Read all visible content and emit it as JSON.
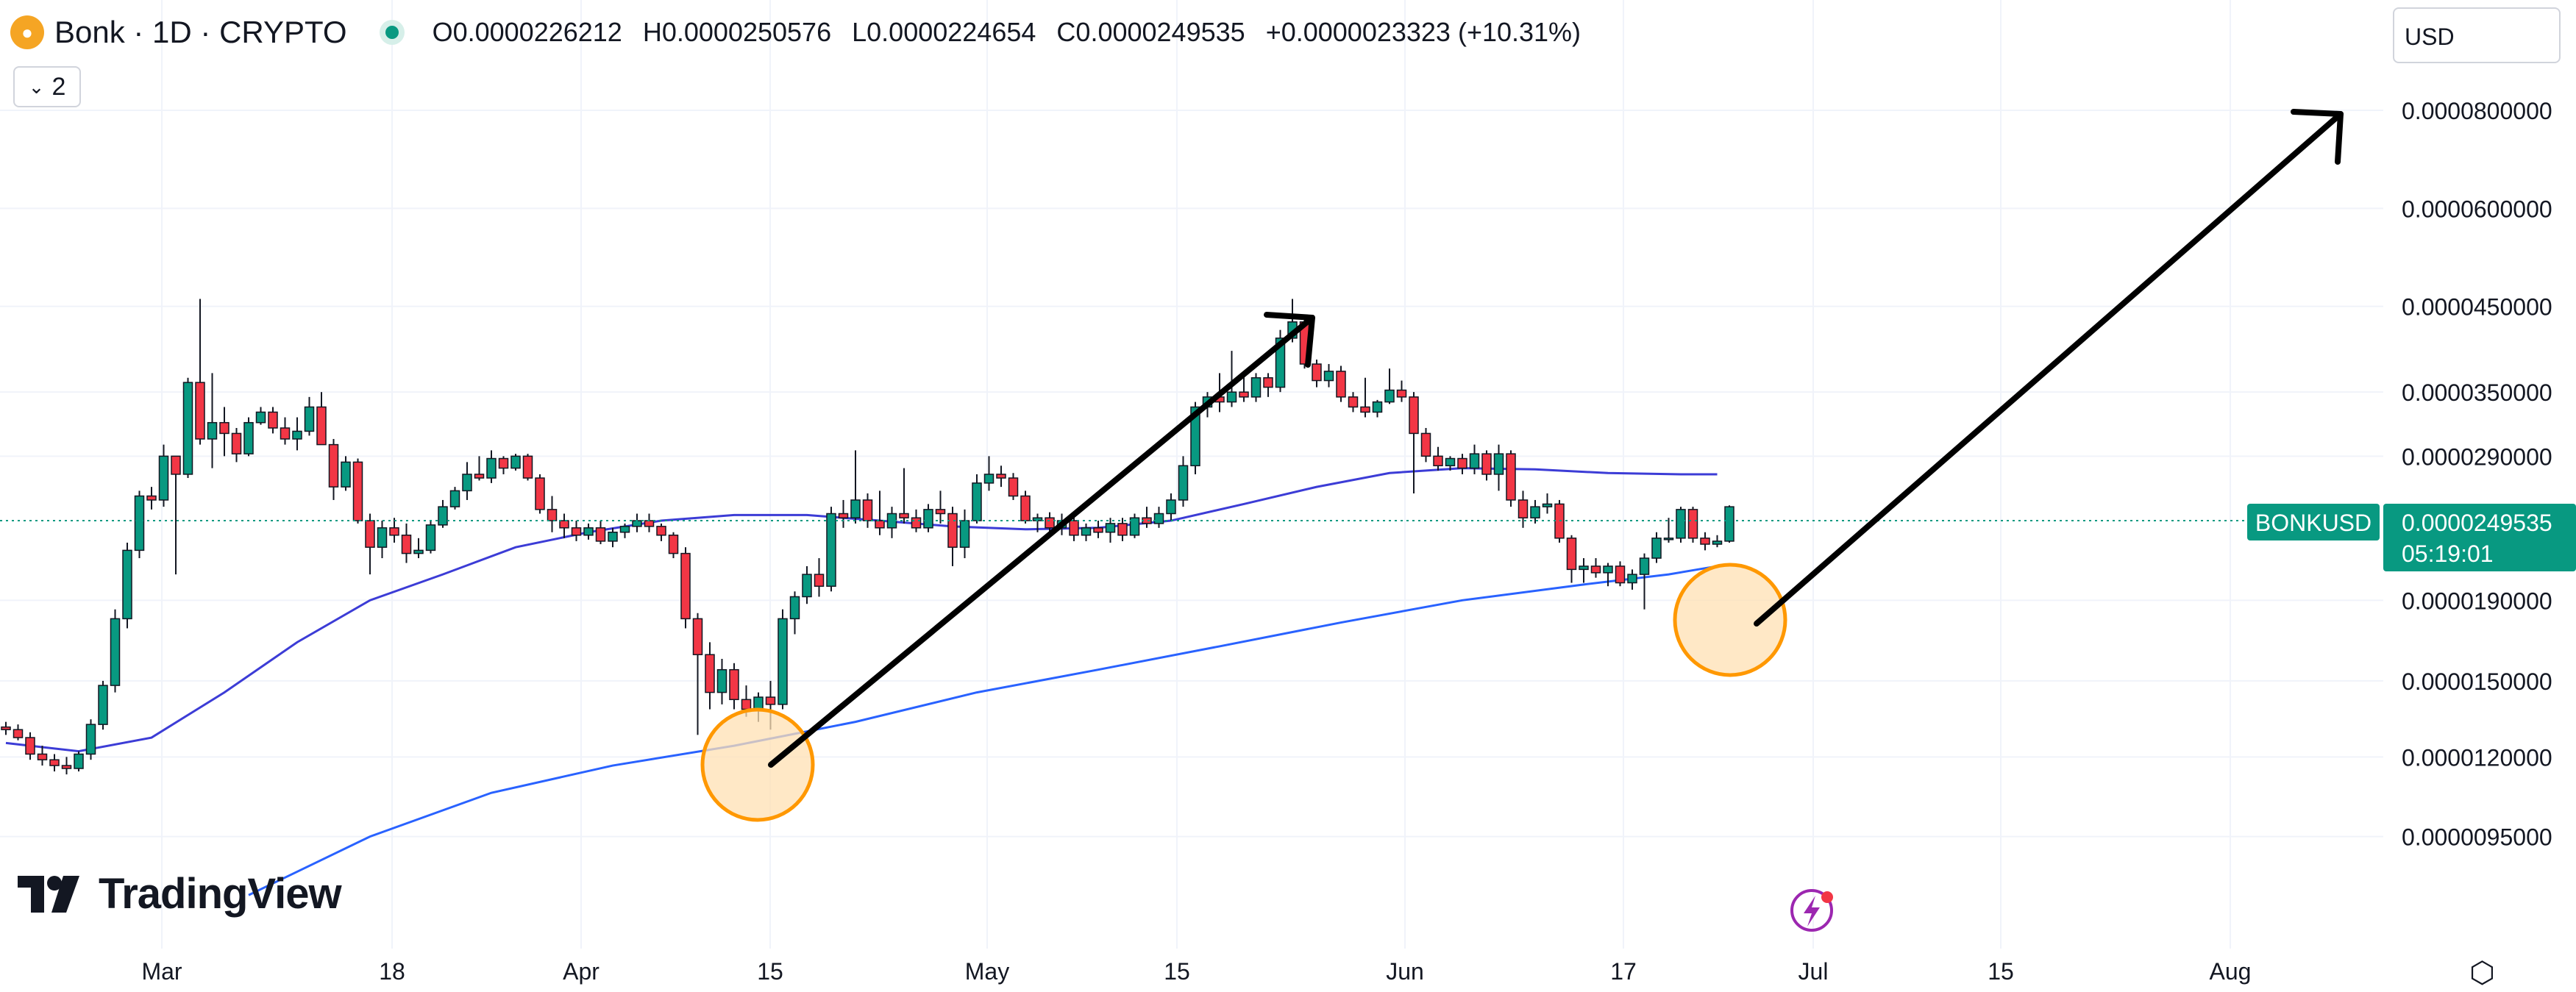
{
  "header": {
    "symbol": "Bonk · 1D · CRYPTO",
    "o_label": "O",
    "o_value": "0.0000226212",
    "h_label": "H",
    "h_value": "0.0000250576",
    "l_label": "L",
    "l_value": "0.0000224654",
    "c_label": "C",
    "c_value": "0.0000249535",
    "change": "+0.0000023323 (+10.31%)",
    "indicator_count": "2"
  },
  "currency": "USD",
  "brand": "TradingView",
  "colors": {
    "up": "#089981",
    "down": "#f23645",
    "ma_short": "#3c3cd6",
    "ma_long": "#2962ff",
    "annotation": "#ff9800"
  },
  "chart_data": {
    "type": "candlestick",
    "scale": "log",
    "y_ticks": [
      "0.0000800000",
      "0.0000600000",
      "0.0000450000",
      "0.0000350000",
      "0.0000290000",
      "0.0000190000",
      "0.0000150000",
      "0.0000120000",
      "0.0000095000"
    ],
    "x_ticks": [
      "Mar",
      "18",
      "Apr",
      "15",
      "May",
      "15",
      "Jun",
      "17",
      "Jul",
      "15",
      "Aug"
    ],
    "last_price": {
      "symbol": "BONKUSD",
      "value": "0.0000249535",
      "countdown": "05:19:01"
    },
    "series": [
      {
        "name": "candles",
        "ohlc": [
          [
            1.31e-05,
            1.33e-05,
            1.28e-05,
            1.3e-05
          ],
          [
            1.3e-05,
            1.32e-05,
            1.26e-05,
            1.27e-05
          ],
          [
            1.27e-05,
            1.29e-05,
            1.19e-05,
            1.21e-05
          ],
          [
            1.21e-05,
            1.24e-05,
            1.17e-05,
            1.19e-05
          ],
          [
            1.19e-05,
            1.21e-05,
            1.15e-05,
            1.17e-05
          ],
          [
            1.17e-05,
            1.2e-05,
            1.14e-05,
            1.16e-05
          ],
          [
            1.16e-05,
            1.22e-05,
            1.15e-05,
            1.21e-05
          ],
          [
            1.21e-05,
            1.34e-05,
            1.19e-05,
            1.32e-05
          ],
          [
            1.32e-05,
            1.5e-05,
            1.3e-05,
            1.48e-05
          ],
          [
            1.48e-05,
            1.85e-05,
            1.45e-05,
            1.8e-05
          ],
          [
            1.8e-05,
            2.25e-05,
            1.75e-05,
            2.2e-05
          ],
          [
            2.2e-05,
            2.62e-05,
            2.15e-05,
            2.58e-05
          ],
          [
            2.58e-05,
            2.65e-05,
            2.48e-05,
            2.55e-05
          ],
          [
            2.55e-05,
            3e-05,
            2.5e-05,
            2.9e-05
          ],
          [
            2.9e-05,
            2.9e-05,
            2.05e-05,
            2.75e-05
          ],
          [
            2.75e-05,
            3.65e-05,
            2.72e-05,
            3.6e-05
          ],
          [
            3.6e-05,
            4.6e-05,
            3e-05,
            3.05e-05
          ],
          [
            3.05e-05,
            3.7e-05,
            2.8e-05,
            3.2e-05
          ],
          [
            3.2e-05,
            3.35e-05,
            2.9e-05,
            3.1e-05
          ],
          [
            3.1e-05,
            3.15e-05,
            2.85e-05,
            2.92e-05
          ],
          [
            2.92e-05,
            3.25e-05,
            2.9e-05,
            3.2e-05
          ],
          [
            3.2e-05,
            3.35e-05,
            3.18e-05,
            3.3e-05
          ],
          [
            3.3e-05,
            3.35e-05,
            3.1e-05,
            3.15e-05
          ],
          [
            3.15e-05,
            3.25e-05,
            3e-05,
            3.05e-05
          ],
          [
            3.05e-05,
            3.25e-05,
            2.95e-05,
            3.12e-05
          ],
          [
            3.12e-05,
            3.45e-05,
            3.08e-05,
            3.35e-05
          ],
          [
            3.35e-05,
            3.5e-05,
            3e-05,
            3e-05
          ],
          [
            3e-05,
            3.05e-05,
            2.55e-05,
            2.65e-05
          ],
          [
            2.65e-05,
            2.9e-05,
            2.62e-05,
            2.85e-05
          ],
          [
            2.85e-05,
            2.88e-05,
            2.38e-05,
            2.4e-05
          ],
          [
            2.4e-05,
            2.45e-05,
            2.05e-05,
            2.22e-05
          ],
          [
            2.22e-05,
            2.4e-05,
            2.15e-05,
            2.35e-05
          ],
          [
            2.35e-05,
            2.42e-05,
            2.25e-05,
            2.3e-05
          ],
          [
            2.3e-05,
            2.38e-05,
            2.12e-05,
            2.18e-05
          ],
          [
            2.18e-05,
            2.28e-05,
            2.15e-05,
            2.2e-05
          ],
          [
            2.2e-05,
            2.4e-05,
            2.18e-05,
            2.37e-05
          ],
          [
            2.37e-05,
            2.55e-05,
            2.35e-05,
            2.5e-05
          ],
          [
            2.5e-05,
            2.65e-05,
            2.48e-05,
            2.62e-05
          ],
          [
            2.62e-05,
            2.85e-05,
            2.55e-05,
            2.75e-05
          ],
          [
            2.75e-05,
            2.9e-05,
            2.7e-05,
            2.72e-05
          ],
          [
            2.72e-05,
            2.95e-05,
            2.68e-05,
            2.88e-05
          ],
          [
            2.88e-05,
            2.9e-05,
            2.75e-05,
            2.8e-05
          ],
          [
            2.8e-05,
            2.92e-05,
            2.78e-05,
            2.9e-05
          ],
          [
            2.9e-05,
            2.92e-05,
            2.7e-05,
            2.72e-05
          ],
          [
            2.72e-05,
            2.75e-05,
            2.45e-05,
            2.48e-05
          ],
          [
            2.48e-05,
            2.58e-05,
            2.32e-05,
            2.4e-05
          ],
          [
            2.4e-05,
            2.45e-05,
            2.28e-05,
            2.35e-05
          ],
          [
            2.35e-05,
            2.4e-05,
            2.26e-05,
            2.3e-05
          ],
          [
            2.3e-05,
            2.38e-05,
            2.27e-05,
            2.35e-05
          ],
          [
            2.35e-05,
            2.4e-05,
            2.24e-05,
            2.26e-05
          ],
          [
            2.26e-05,
            2.35e-05,
            2.22e-05,
            2.32e-05
          ],
          [
            2.32e-05,
            2.38e-05,
            2.28e-05,
            2.36e-05
          ],
          [
            2.36e-05,
            2.45e-05,
            2.32e-05,
            2.4e-05
          ],
          [
            2.4e-05,
            2.45e-05,
            2.32e-05,
            2.36e-05
          ],
          [
            2.36e-05,
            2.38e-05,
            2.26e-05,
            2.3e-05
          ],
          [
            2.3e-05,
            2.32e-05,
            2.15e-05,
            2.18e-05
          ],
          [
            2.18e-05,
            2.22e-05,
            1.75e-05,
            1.8e-05
          ],
          [
            1.8e-05,
            1.83e-05,
            1.28e-05,
            1.62e-05
          ],
          [
            1.62e-05,
            1.68e-05,
            1.38e-05,
            1.45e-05
          ],
          [
            1.45e-05,
            1.6e-05,
            1.4e-05,
            1.55e-05
          ],
          [
            1.55e-05,
            1.58e-05,
            1.38e-05,
            1.42e-05
          ],
          [
            1.42e-05,
            1.48e-05,
            1.35e-05,
            1.38e-05
          ],
          [
            1.38e-05,
            1.45e-05,
            1.33e-05,
            1.43e-05
          ],
          [
            1.43e-05,
            1.5e-05,
            1.3e-05,
            1.4e-05
          ],
          [
            1.4e-05,
            1.85e-05,
            1.38e-05,
            1.8e-05
          ],
          [
            1.8e-05,
            1.95e-05,
            1.72e-05,
            1.92e-05
          ],
          [
            1.92e-05,
            2.1e-05,
            1.88e-05,
            2.05e-05
          ],
          [
            2.05e-05,
            2.15e-05,
            1.92e-05,
            1.98e-05
          ],
          [
            1.98e-05,
            2.5e-05,
            1.95e-05,
            2.45e-05
          ],
          [
            2.45e-05,
            2.55e-05,
            2.35e-05,
            2.42e-05
          ],
          [
            2.42e-05,
            2.95e-05,
            2.38e-05,
            2.55e-05
          ],
          [
            2.55e-05,
            2.6e-05,
            2.35e-05,
            2.4e-05
          ],
          [
            2.4e-05,
            2.62e-05,
            2.3e-05,
            2.35e-05
          ],
          [
            2.35e-05,
            2.5e-05,
            2.28e-05,
            2.45e-05
          ],
          [
            2.45e-05,
            2.8e-05,
            2.38e-05,
            2.42e-05
          ],
          [
            2.42e-05,
            2.48e-05,
            2.32e-05,
            2.35e-05
          ],
          [
            2.35e-05,
            2.52e-05,
            2.32e-05,
            2.48e-05
          ],
          [
            2.48e-05,
            2.62e-05,
            2.38e-05,
            2.45e-05
          ],
          [
            2.45e-05,
            2.5e-05,
            2.1e-05,
            2.22e-05
          ],
          [
            2.22e-05,
            2.48e-05,
            2.15e-05,
            2.4e-05
          ],
          [
            2.4e-05,
            2.75e-05,
            2.38e-05,
            2.68e-05
          ],
          [
            2.68e-05,
            2.9e-05,
            2.62e-05,
            2.75e-05
          ],
          [
            2.75e-05,
            2.82e-05,
            2.65e-05,
            2.72e-05
          ],
          [
            2.72e-05,
            2.76e-05,
            2.55e-05,
            2.58e-05
          ],
          [
            2.58e-05,
            2.62e-05,
            2.38e-05,
            2.4e-05
          ],
          [
            2.4e-05,
            2.45e-05,
            2.32e-05,
            2.42e-05
          ],
          [
            2.42e-05,
            2.46e-05,
            2.32e-05,
            2.35e-05
          ],
          [
            2.35e-05,
            2.45e-05,
            2.3e-05,
            2.4e-05
          ],
          [
            2.4e-05,
            2.44e-05,
            2.26e-05,
            2.3e-05
          ],
          [
            2.3e-05,
            2.38e-05,
            2.26e-05,
            2.35e-05
          ],
          [
            2.35e-05,
            2.4e-05,
            2.28e-05,
            2.32e-05
          ],
          [
            2.32e-05,
            2.42e-05,
            2.25e-05,
            2.38e-05
          ],
          [
            2.38e-05,
            2.42e-05,
            2.26e-05,
            2.3e-05
          ],
          [
            2.3e-05,
            2.45e-05,
            2.28e-05,
            2.42e-05
          ],
          [
            2.42e-05,
            2.5e-05,
            2.35e-05,
            2.38e-05
          ],
          [
            2.38e-05,
            2.5e-05,
            2.35e-05,
            2.45e-05
          ],
          [
            2.45e-05,
            2.6e-05,
            2.4e-05,
            2.55e-05
          ],
          [
            2.55e-05,
            2.9e-05,
            2.5e-05,
            2.82e-05
          ],
          [
            2.82e-05,
            3.4e-05,
            2.75e-05,
            3.35e-05
          ],
          [
            3.35e-05,
            3.5e-05,
            3.25e-05,
            3.45e-05
          ],
          [
            3.45e-05,
            3.7e-05,
            3.3e-05,
            3.4e-05
          ],
          [
            3.4e-05,
            3.95e-05,
            3.35e-05,
            3.5e-05
          ],
          [
            3.5e-05,
            3.7e-05,
            3.4e-05,
            3.45e-05
          ],
          [
            3.45e-05,
            3.7e-05,
            3.4e-05,
            3.65e-05
          ],
          [
            3.65e-05,
            3.7e-05,
            3.45e-05,
            3.55e-05
          ],
          [
            3.55e-05,
            4.2e-05,
            3.5e-05,
            4.1e-05
          ],
          [
            4.1e-05,
            4.6e-05,
            4.05e-05,
            4.3e-05
          ],
          [
            4.3e-05,
            4.35e-05,
            3.75e-05,
            3.8e-05
          ],
          [
            3.8e-05,
            3.85e-05,
            3.55e-05,
            3.62e-05
          ],
          [
            3.62e-05,
            3.8e-05,
            3.55e-05,
            3.72e-05
          ],
          [
            3.72e-05,
            3.78e-05,
            3.4e-05,
            3.45e-05
          ],
          [
            3.45e-05,
            3.5e-05,
            3.3e-05,
            3.35e-05
          ],
          [
            3.35e-05,
            3.65e-05,
            3.25e-05,
            3.3e-05
          ],
          [
            3.3e-05,
            3.42e-05,
            3.25e-05,
            3.4e-05
          ],
          [
            3.4e-05,
            3.75e-05,
            3.38e-05,
            3.52e-05
          ],
          [
            3.52e-05,
            3.62e-05,
            3.4e-05,
            3.45e-05
          ],
          [
            3.45e-05,
            3.5e-05,
            2.6e-05,
            3.1e-05
          ],
          [
            3.1e-05,
            3.15e-05,
            2.85e-05,
            2.9e-05
          ],
          [
            2.9e-05,
            2.98e-05,
            2.78e-05,
            2.82e-05
          ],
          [
            2.82e-05,
            2.9e-05,
            2.78e-05,
            2.88e-05
          ],
          [
            2.88e-05,
            2.92e-05,
            2.75e-05,
            2.8e-05
          ],
          [
            2.8e-05,
            3e-05,
            2.75e-05,
            2.92e-05
          ],
          [
            2.92e-05,
            2.95e-05,
            2.7e-05,
            2.75e-05
          ],
          [
            2.75e-05,
            3e-05,
            2.62e-05,
            2.92e-05
          ],
          [
            2.92e-05,
            2.95e-05,
            2.5e-05,
            2.55e-05
          ],
          [
            2.55e-05,
            2.62e-05,
            2.35e-05,
            2.42e-05
          ],
          [
            2.42e-05,
            2.55e-05,
            2.38e-05,
            2.5e-05
          ],
          [
            2.5e-05,
            2.6e-05,
            2.45e-05,
            2.52e-05
          ],
          [
            2.52e-05,
            2.55e-05,
            2.25e-05,
            2.28e-05
          ],
          [
            2.28e-05,
            2.3e-05,
            2e-05,
            2.08e-05
          ],
          [
            2.08e-05,
            2.15e-05,
            2e-05,
            2.1e-05
          ],
          [
            2.1e-05,
            2.15e-05,
            2.03e-05,
            2.06e-05
          ],
          [
            2.06e-05,
            2.12e-05,
            1.98e-05,
            2.1e-05
          ],
          [
            2.1e-05,
            2.13e-05,
            1.98e-05,
            2e-05
          ],
          [
            2e-05,
            2.08e-05,
            1.96e-05,
            2.05e-05
          ],
          [
            2.05e-05,
            2.18e-05,
            1.85e-05,
            2.15e-05
          ],
          [
            2.15e-05,
            2.32e-05,
            2.12e-05,
            2.28e-05
          ],
          [
            2.28e-05,
            2.42e-05,
            2.25e-05,
            2.28e-05
          ],
          [
            2.28e-05,
            2.5e-05,
            2.25e-05,
            2.48e-05
          ],
          [
            2.48e-05,
            2.5e-05,
            2.25e-05,
            2.28e-05
          ],
          [
            2.28e-05,
            2.32e-05,
            2.2e-05,
            2.24e-05
          ],
          [
            2.24e-05,
            2.3e-05,
            2.22e-05,
            2.26e-05
          ],
          [
            2.26e-05,
            2.51e-05,
            2.25e-05,
            2.5e-05
          ]
        ]
      },
      {
        "name": "ma_short",
        "values": [
          [
            0,
            1.25e-05
          ],
          [
            6,
            1.22e-05
          ],
          [
            12,
            1.27e-05
          ],
          [
            18,
            1.45e-05
          ],
          [
            24,
            1.68e-05
          ],
          [
            30,
            1.9e-05
          ],
          [
            36,
            2.05e-05
          ],
          [
            42,
            2.22e-05
          ],
          [
            48,
            2.32e-05
          ],
          [
            54,
            2.4e-05
          ],
          [
            60,
            2.44e-05
          ],
          [
            66,
            2.44e-05
          ],
          [
            72,
            2.4e-05
          ],
          [
            78,
            2.36e-05
          ],
          [
            84,
            2.34e-05
          ],
          [
            90,
            2.35e-05
          ],
          [
            96,
            2.4e-05
          ],
          [
            102,
            2.52e-05
          ],
          [
            108,
            2.65e-05
          ],
          [
            114,
            2.76e-05
          ],
          [
            120,
            2.8e-05
          ],
          [
            126,
            2.79e-05
          ],
          [
            132,
            2.76e-05
          ],
          [
            138,
            2.75e-05
          ],
          [
            141,
            2.75e-05
          ]
        ]
      },
      {
        "name": "ma_long",
        "values": [
          [
            20,
            8e-06
          ],
          [
            30,
            9.5e-06
          ],
          [
            40,
            1.08e-05
          ],
          [
            50,
            1.17e-05
          ],
          [
            60,
            1.24e-05
          ],
          [
            70,
            1.33e-05
          ],
          [
            80,
            1.45e-05
          ],
          [
            90,
            1.55e-05
          ],
          [
            100,
            1.66e-05
          ],
          [
            110,
            1.78e-05
          ],
          [
            120,
            1.9e-05
          ],
          [
            130,
            1.99e-05
          ],
          [
            137,
            2.05e-05
          ],
          [
            141,
            2.1e-05
          ]
        ]
      }
    ]
  }
}
